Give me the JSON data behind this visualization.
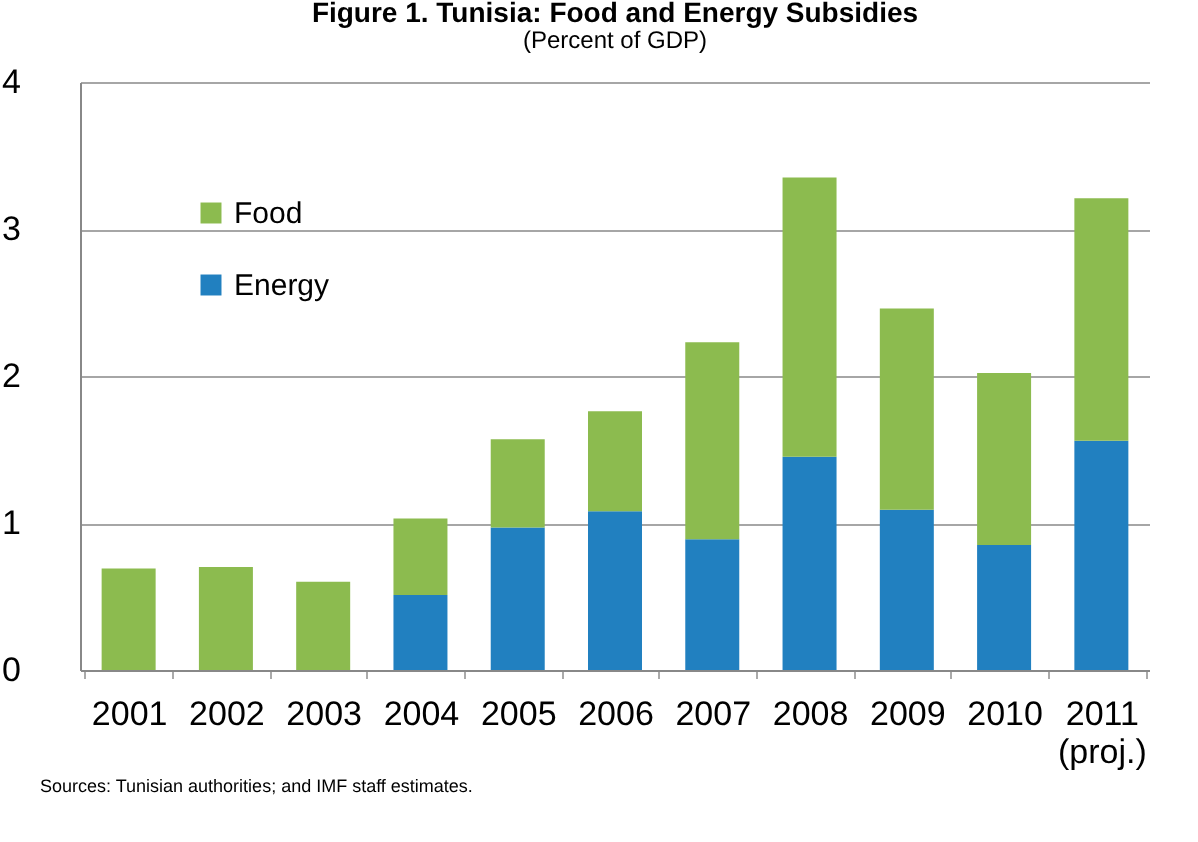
{
  "chart_data": {
    "type": "bar",
    "title": "Figure 1. Tunisia: Food and Energy Subsidies",
    "subtitle": "(Percent of GDP)",
    "categories": [
      "2001",
      "2002",
      "2003",
      "2004",
      "2005",
      "2006",
      "2007",
      "2008",
      "2009",
      "2010",
      "2011\n(proj.)"
    ],
    "series": [
      {
        "name": "Energy",
        "color": "#2180c0",
        "values": [
          null,
          null,
          null,
          0.51,
          0.97,
          1.08,
          0.89,
          1.45,
          1.09,
          0.85,
          1.56
        ]
      },
      {
        "name": "Food",
        "color": "#8cbb4f",
        "values": [
          0.69,
          0.7,
          0.6,
          0.52,
          0.6,
          0.68,
          1.34,
          1.9,
          1.37,
          1.17,
          1.65
        ]
      }
    ],
    "stacked": true,
    "ylim": [
      0,
      4
    ],
    "yticks": [
      0,
      1,
      2,
      3,
      4
    ],
    "grid": "y",
    "legend": "top left",
    "annotations": [
      "Sources: Tunisian authorities; and IMF staff estimates."
    ]
  }
}
